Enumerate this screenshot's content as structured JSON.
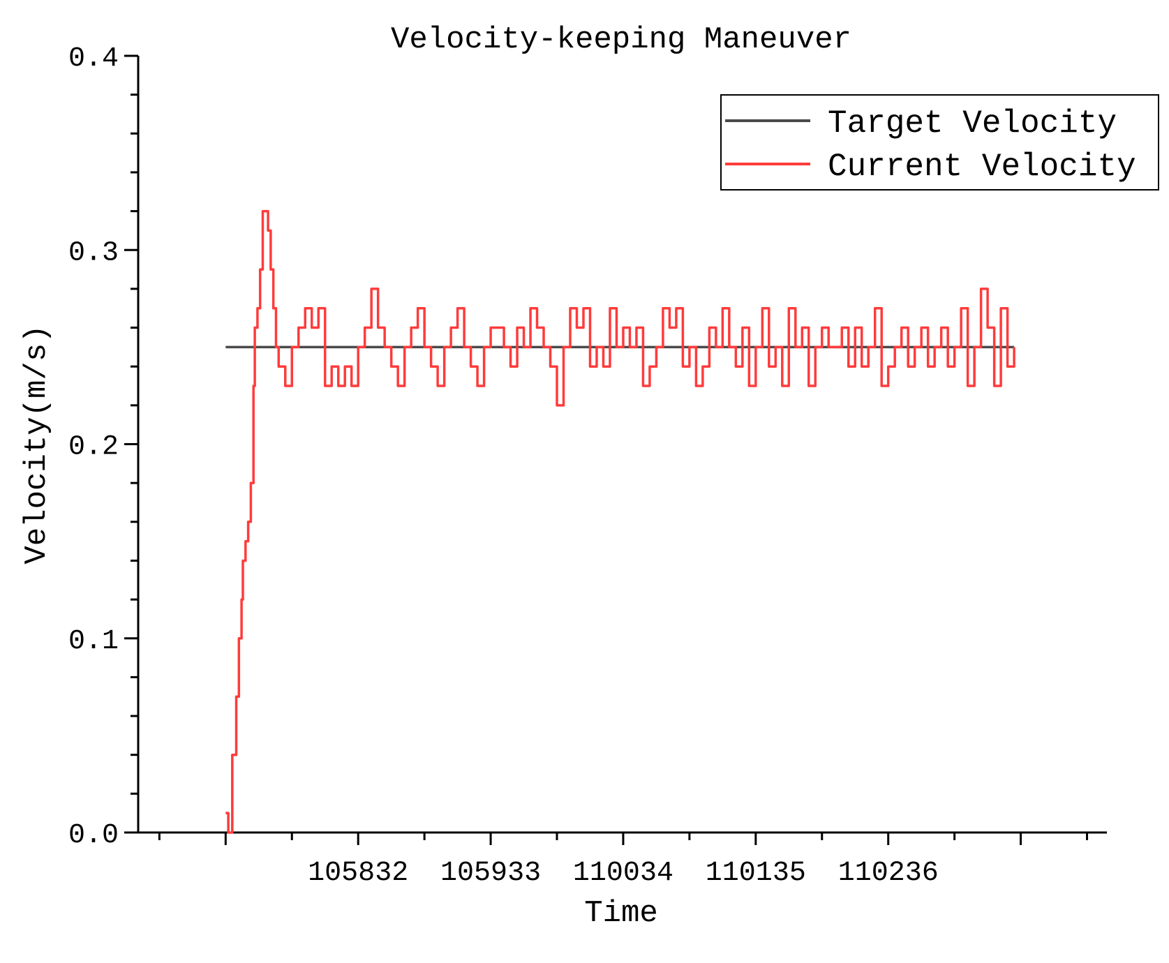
{
  "chart_data": {
    "type": "line",
    "title": "Velocity-keeping Maneuver",
    "xlabel": "Time",
    "ylabel": "Velocity(m/s)",
    "xlim": [
      -0.66,
      6.65
    ],
    "xticks": [
      {
        "value": 0,
        "label": null
      },
      {
        "value": 1,
        "label": "105832"
      },
      {
        "value": 2,
        "label": "105933"
      },
      {
        "value": 3,
        "label": "110034"
      },
      {
        "value": 4,
        "label": "110135"
      },
      {
        "value": 5,
        "label": "110236"
      },
      {
        "value": 6,
        "label": null
      }
    ],
    "xminorticks": [
      -0.5,
      0.5,
      1.5,
      2.5,
      3.5,
      4.5,
      5.5,
      6.5
    ],
    "ylim": [
      0,
      0.4
    ],
    "yticks": [
      {
        "value": 0,
        "label": "0.0"
      },
      0.1,
      0.2,
      0.3,
      0.4
    ],
    "yminorticks": [
      0.02,
      0.04,
      0.06,
      0.08,
      0.12,
      0.14,
      0.16,
      0.18,
      0.22,
      0.24,
      0.26,
      0.28,
      0.32,
      0.34,
      0.36,
      0.38
    ],
    "legend": "upper right",
    "series": [
      {
        "name": "Target Velocity",
        "color": "#4a4a4a",
        "step": false,
        "x": [
          0,
          5.95
        ],
        "values": [
          0.25,
          0.25
        ]
      },
      {
        "name": "Current Velocity",
        "color": "#ff3b3b",
        "step": true,
        "x": [
          0,
          0.02,
          0.05,
          0.08,
          0.1,
          0.12,
          0.13,
          0.15,
          0.17,
          0.19,
          0.21,
          0.22,
          0.24,
          0.26,
          0.28,
          0.3,
          0.32,
          0.34,
          0.36,
          0.38,
          0.4,
          0.45,
          0.5,
          0.55,
          0.6,
          0.65,
          0.7,
          0.75,
          0.8,
          0.85,
          0.9,
          0.95,
          1.0,
          1.05,
          1.1,
          1.15,
          1.2,
          1.25,
          1.3,
          1.35,
          1.4,
          1.45,
          1.5,
          1.55,
          1.6,
          1.65,
          1.7,
          1.75,
          1.8,
          1.85,
          1.9,
          1.95,
          2.0,
          2.05,
          2.1,
          2.15,
          2.2,
          2.25,
          2.3,
          2.35,
          2.4,
          2.45,
          2.5,
          2.55,
          2.6,
          2.65,
          2.7,
          2.75,
          2.8,
          2.85,
          2.9,
          2.95,
          3.0,
          3.05,
          3.1,
          3.15,
          3.2,
          3.25,
          3.3,
          3.35,
          3.4,
          3.45,
          3.5,
          3.55,
          3.6,
          3.65,
          3.7,
          3.75,
          3.8,
          3.85,
          3.9,
          3.95,
          4.0,
          4.05,
          4.1,
          4.15,
          4.2,
          4.25,
          4.3,
          4.35,
          4.4,
          4.45,
          4.5,
          4.55,
          4.6,
          4.65,
          4.7,
          4.75,
          4.8,
          4.85,
          4.9,
          4.95,
          5.0,
          5.05,
          5.1,
          5.15,
          5.2,
          5.25,
          5.3,
          5.35,
          5.4,
          5.45,
          5.5,
          5.55,
          5.6,
          5.65,
          5.7,
          5.75,
          5.8,
          5.85,
          5.9,
          5.95
        ],
        "values": [
          0.01,
          0,
          0.04,
          0.07,
          0.1,
          0.12,
          0.14,
          0.15,
          0.16,
          0.18,
          0.23,
          0.26,
          0.27,
          0.29,
          0.32,
          0.32,
          0.31,
          0.29,
          0.27,
          0.25,
          0.24,
          0.23,
          0.25,
          0.26,
          0.27,
          0.26,
          0.27,
          0.23,
          0.24,
          0.23,
          0.24,
          0.23,
          0.25,
          0.26,
          0.28,
          0.26,
          0.25,
          0.24,
          0.23,
          0.25,
          0.26,
          0.27,
          0.25,
          0.24,
          0.23,
          0.25,
          0.26,
          0.27,
          0.25,
          0.24,
          0.23,
          0.25,
          0.26,
          0.26,
          0.25,
          0.24,
          0.26,
          0.25,
          0.27,
          0.26,
          0.25,
          0.24,
          0.22,
          0.25,
          0.27,
          0.26,
          0.27,
          0.24,
          0.25,
          0.24,
          0.27,
          0.25,
          0.26,
          0.25,
          0.26,
          0.23,
          0.24,
          0.25,
          0.27,
          0.26,
          0.27,
          0.24,
          0.25,
          0.23,
          0.24,
          0.26,
          0.25,
          0.27,
          0.25,
          0.24,
          0.26,
          0.23,
          0.25,
          0.27,
          0.24,
          0.25,
          0.23,
          0.27,
          0.25,
          0.26,
          0.23,
          0.25,
          0.26,
          0.25,
          0.25,
          0.26,
          0.24,
          0.26,
          0.24,
          0.25,
          0.27,
          0.23,
          0.24,
          0.25,
          0.26,
          0.24,
          0.25,
          0.26,
          0.24,
          0.25,
          0.26,
          0.24,
          0.25,
          0.27,
          0.23,
          0.25,
          0.28,
          0.26,
          0.23,
          0.27,
          0.24,
          0.25
        ]
      }
    ]
  }
}
